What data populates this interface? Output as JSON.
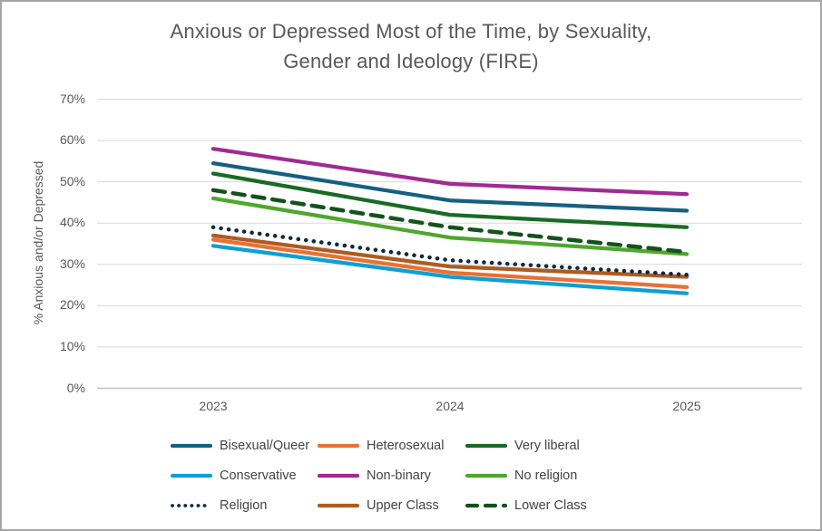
{
  "title_lines": [
    "Anxious or Depressed Most of the Time, by Sexuality,",
    "Gender and Ideology (FIRE)"
  ],
  "chart_data": {
    "type": "line",
    "title": "Anxious or Depressed Most of the Time, by Sexuality, Gender and Ideology (FIRE)",
    "xlabel": "",
    "ylabel": "% Anxious and/or Depressed",
    "x_categories": [
      "2023",
      "2024",
      "2025"
    ],
    "y_ticks": [
      "0%",
      "10%",
      "20%",
      "30%",
      "40%",
      "50%",
      "60%",
      "70%"
    ],
    "ylim": [
      0,
      70
    ],
    "grid": true,
    "legend_position": "bottom",
    "colors": {
      "gridline": "#d9d9d9",
      "axis_text": "#595959",
      "title_text": "#595959"
    },
    "series": [
      {
        "name": "Bisexual/Queer",
        "color": "#156082",
        "style": "solid",
        "values": [
          54.5,
          45.5,
          43
        ]
      },
      {
        "name": "Heterosexual",
        "color": "#E97132",
        "style": "solid",
        "values": [
          36,
          28,
          24.5
        ]
      },
      {
        "name": "Very liberal",
        "color": "#196B24",
        "style": "solid",
        "values": [
          52,
          42,
          39
        ]
      },
      {
        "name": "Conservative",
        "color": "#0F9ED5",
        "style": "solid",
        "values": [
          34.5,
          27,
          23
        ]
      },
      {
        "name": "Non-binary",
        "color": "#A02B93",
        "style": "solid",
        "values": [
          58,
          49.5,
          47
        ]
      },
      {
        "name": "No religion",
        "color": "#4EA72E",
        "style": "solid",
        "values": [
          46,
          36.5,
          32.5
        ]
      },
      {
        "name": "Religion",
        "color": "#0E2841",
        "style": "dotted",
        "values": [
          39,
          31,
          27.5
        ]
      },
      {
        "name": "Upper Class",
        "color": "#AE5A21",
        "style": "solid",
        "values": [
          37,
          29.5,
          27
        ]
      },
      {
        "name": "Lower Class",
        "color": "#14511C",
        "style": "dashed",
        "values": [
          48,
          39,
          33
        ]
      }
    ]
  }
}
